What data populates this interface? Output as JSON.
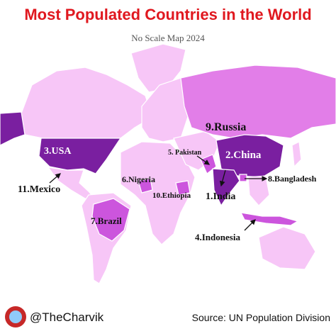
{
  "header": {
    "title": "Most Populated Countries in the World",
    "subtitle": "No Scale Map 2024"
  },
  "labels": [
    "1.India",
    "2.China",
    "3.USA",
    "4.Indonesia",
    "5. Pakistan",
    "6.Nigeria",
    "7.Brazil",
    "8.Bangladesh",
    "9.Russia",
    "10.Ethiopia",
    "11.Mexico"
  ],
  "footer": {
    "handle": "@TheCharvik",
    "source": "Source: UN Population Division"
  }
}
